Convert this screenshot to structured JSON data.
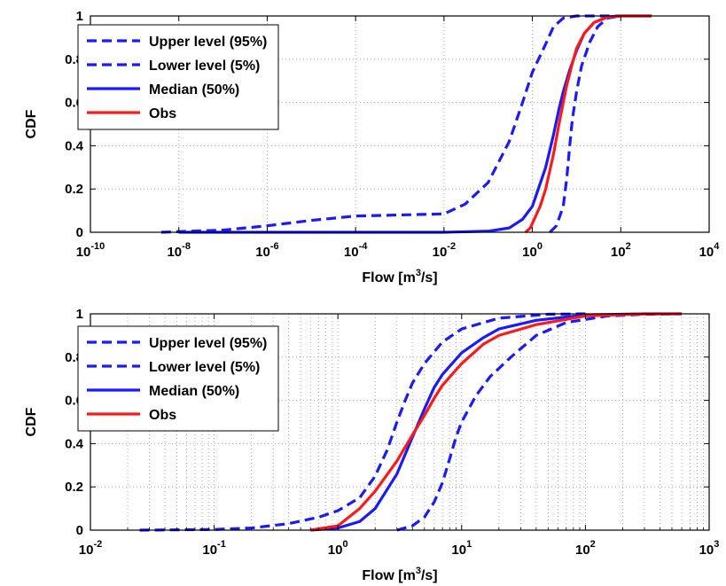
{
  "chart_data": [
    {
      "type": "line",
      "xscale": "log",
      "xlim": [
        1e-10,
        10000
      ],
      "ylim": [
        0,
        1
      ],
      "xlabel": "Flow [m",
      "xlabel_sup": "3",
      "xlabel_end": "/s]",
      "ylabel": "CDF",
      "grid": true,
      "legend_position": "top-left",
      "x_ticks": [
        {
          "value": 1e-10,
          "base": "10",
          "exp": "-10"
        },
        {
          "value": 1e-08,
          "base": "10",
          "exp": "-8"
        },
        {
          "value": 1e-06,
          "base": "10",
          "exp": "-6"
        },
        {
          "value": 0.0001,
          "base": "10",
          "exp": "-4"
        },
        {
          "value": 0.01,
          "base": "10",
          "exp": "-2"
        },
        {
          "value": 1,
          "base": "10",
          "exp": "0"
        },
        {
          "value": 100,
          "base": "10",
          "exp": "2"
        },
        {
          "value": 10000,
          "base": "10",
          "exp": "4"
        }
      ],
      "y_ticks": [
        {
          "value": 0,
          "label": "0"
        },
        {
          "value": 0.2,
          "label": "0.2"
        },
        {
          "value": 0.4,
          "label": "0.4"
        },
        {
          "value": 0.6,
          "label": "0.6"
        },
        {
          "value": 0.8,
          "label": "0.8"
        },
        {
          "value": 1,
          "label": "1"
        }
      ],
      "series": [
        {
          "name": "Upper level (95%)",
          "color": "#1a1aff",
          "dash": true,
          "points": [
            [
              4e-09,
              0
            ],
            [
              1e-08,
              0.003
            ],
            [
              1e-07,
              0.01
            ],
            [
              1e-06,
              0.03
            ],
            [
              1e-05,
              0.055
            ],
            [
              0.0001,
              0.075
            ],
            [
              0.001,
              0.08
            ],
            [
              0.01,
              0.085
            ],
            [
              0.03,
              0.13
            ],
            [
              0.1,
              0.23
            ],
            [
              0.3,
              0.42
            ],
            [
              0.6,
              0.6
            ],
            [
              1,
              0.74
            ],
            [
              2,
              0.87
            ],
            [
              3,
              0.95
            ],
            [
              5,
              0.99
            ],
            [
              10,
              1
            ],
            [
              100,
              1
            ]
          ]
        },
        {
          "name": "Lower level (5%)",
          "color": "#1a1aff",
          "dash": true,
          "points": [
            [
              2.5,
              0
            ],
            [
              3.5,
              0.03
            ],
            [
              5,
              0.12
            ],
            [
              6,
              0.25
            ],
            [
              7,
              0.4
            ],
            [
              8,
              0.52
            ],
            [
              10,
              0.65
            ],
            [
              13,
              0.77
            ],
            [
              20,
              0.88
            ],
            [
              30,
              0.95
            ],
            [
              50,
              0.99
            ],
            [
              100,
              1
            ]
          ]
        },
        {
          "name": "Median (50%)",
          "color": "#1a1aff",
          "dash": false,
          "points": [
            [
              1e-08,
              0
            ],
            [
              0.01,
              0
            ],
            [
              0.1,
              0.005
            ],
            [
              0.3,
              0.02
            ],
            [
              0.6,
              0.06
            ],
            [
              1,
              0.12
            ],
            [
              2,
              0.3
            ],
            [
              3,
              0.45
            ],
            [
              4,
              0.57
            ],
            [
              5,
              0.65
            ],
            [
              7,
              0.75
            ],
            [
              10,
              0.84
            ],
            [
              15,
              0.92
            ],
            [
              25,
              0.97
            ],
            [
              50,
              0.995
            ],
            [
              100,
              1
            ],
            [
              500,
              1
            ]
          ]
        },
        {
          "name": "Obs",
          "color": "#ff1a1a",
          "dash": false,
          "points": [
            [
              0.7,
              0
            ],
            [
              0.9,
              0.02
            ],
            [
              1.1,
              0.06
            ],
            [
              1.5,
              0.12
            ],
            [
              2,
              0.2
            ],
            [
              3,
              0.36
            ],
            [
              4,
              0.5
            ],
            [
              5,
              0.6
            ],
            [
              6,
              0.68
            ],
            [
              8,
              0.78
            ],
            [
              10,
              0.85
            ],
            [
              15,
              0.92
            ],
            [
              25,
              0.97
            ],
            [
              50,
              0.995
            ],
            [
              100,
              1
            ],
            [
              500,
              1
            ]
          ]
        }
      ]
    },
    {
      "type": "line",
      "xscale": "log",
      "xlim": [
        0.01,
        1000
      ],
      "ylim": [
        0,
        1
      ],
      "xlabel": "Flow [m",
      "xlabel_sup": "3",
      "xlabel_end": "/s]",
      "ylabel": "CDF",
      "grid": true,
      "legend_position": "top-left",
      "x_ticks": [
        {
          "value": 0.01,
          "base": "10",
          "exp": "-2"
        },
        {
          "value": 0.1,
          "base": "10",
          "exp": "-1"
        },
        {
          "value": 1,
          "base": "10",
          "exp": "0"
        },
        {
          "value": 10,
          "base": "10",
          "exp": "1"
        },
        {
          "value": 100,
          "base": "10",
          "exp": "2"
        },
        {
          "value": 1000,
          "base": "10",
          "exp": "3"
        }
      ],
      "y_ticks": [
        {
          "value": 0,
          "label": "0"
        },
        {
          "value": 0.2,
          "label": "0.2"
        },
        {
          "value": 0.4,
          "label": "0.4"
        },
        {
          "value": 0.6,
          "label": "0.6"
        },
        {
          "value": 0.8,
          "label": "0.8"
        },
        {
          "value": 1,
          "label": "1"
        }
      ],
      "series": [
        {
          "name": "Upper level (95%)",
          "color": "#1a1aff",
          "dash": true,
          "points": [
            [
              0.025,
              0
            ],
            [
              0.1,
              0.003
            ],
            [
              0.2,
              0.01
            ],
            [
              0.4,
              0.03
            ],
            [
              0.7,
              0.06
            ],
            [
              1,
              0.09
            ],
            [
              1.5,
              0.15
            ],
            [
              2,
              0.25
            ],
            [
              2.5,
              0.37
            ],
            [
              3,
              0.5
            ],
            [
              3.5,
              0.6
            ],
            [
              4,
              0.68
            ],
            [
              5,
              0.77
            ],
            [
              7,
              0.87
            ],
            [
              10,
              0.93
            ],
            [
              20,
              0.98
            ],
            [
              50,
              0.998
            ],
            [
              100,
              1
            ]
          ]
        },
        {
          "name": "Lower level (5%)",
          "color": "#1a1aff",
          "dash": true,
          "points": [
            [
              3,
              0
            ],
            [
              4,
              0.02
            ],
            [
              5,
              0.06
            ],
            [
              6,
              0.13
            ],
            [
              7,
              0.22
            ],
            [
              8,
              0.33
            ],
            [
              9,
              0.43
            ],
            [
              10,
              0.5
            ],
            [
              13,
              0.62
            ],
            [
              17,
              0.71
            ],
            [
              25,
              0.8
            ],
            [
              40,
              0.9
            ],
            [
              70,
              0.96
            ],
            [
              150,
              0.99
            ],
            [
              300,
              0.998
            ],
            [
              600,
              1
            ]
          ]
        },
        {
          "name": "Median (50%)",
          "color": "#1a1aff",
          "dash": false,
          "points": [
            [
              0.6,
              0
            ],
            [
              1,
              0.01
            ],
            [
              1.5,
              0.04
            ],
            [
              2,
              0.1
            ],
            [
              3,
              0.26
            ],
            [
              4,
              0.43
            ],
            [
              5,
              0.56
            ],
            [
              6,
              0.66
            ],
            [
              7,
              0.72
            ],
            [
              10,
              0.82
            ],
            [
              15,
              0.89
            ],
            [
              20,
              0.93
            ],
            [
              40,
              0.97
            ],
            [
              100,
              0.995
            ],
            [
              300,
              1
            ],
            [
              600,
              1
            ]
          ]
        },
        {
          "name": "Obs",
          "color": "#ff1a1a",
          "dash": false,
          "points": [
            [
              0.6,
              0
            ],
            [
              1,
              0.02
            ],
            [
              1.5,
              0.1
            ],
            [
              2,
              0.18
            ],
            [
              3,
              0.32
            ],
            [
              4,
              0.44
            ],
            [
              5,
              0.53
            ],
            [
              6,
              0.61
            ],
            [
              7,
              0.67
            ],
            [
              10,
              0.77
            ],
            [
              15,
              0.86
            ],
            [
              20,
              0.9
            ],
            [
              40,
              0.95
            ],
            [
              100,
              0.99
            ],
            [
              300,
              1
            ],
            [
              600,
              1
            ]
          ]
        }
      ]
    }
  ]
}
